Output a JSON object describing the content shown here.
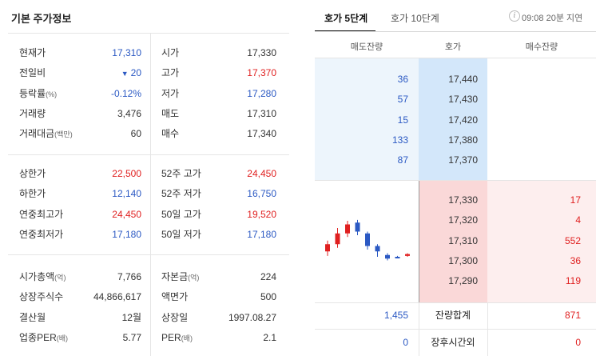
{
  "basic": {
    "title": "기본 주가정보",
    "rows1": [
      {
        "l1": "현재가",
        "u1": "",
        "v1": "17,310",
        "c1": "blue",
        "l2": "시가",
        "u2": "",
        "v2": "17,330",
        "c2": "dark"
      },
      {
        "l1": "전일비",
        "u1": "",
        "v1": "20",
        "c1": "blue",
        "arrow": "▼",
        "l2": "고가",
        "u2": "",
        "v2": "17,370",
        "c2": "red"
      },
      {
        "l1": "등락률",
        "u1": "(%)",
        "v1": "-0.12%",
        "c1": "blue",
        "l2": "저가",
        "u2": "",
        "v2": "17,280",
        "c2": "blue"
      },
      {
        "l1": "거래량",
        "u1": "",
        "v1": "3,476",
        "c1": "dark",
        "l2": "매도",
        "u2": "",
        "v2": "17,310",
        "c2": "dark"
      },
      {
        "l1": "거래대금",
        "u1": "(백만)",
        "v1": "60",
        "c1": "dark",
        "l2": "매수",
        "u2": "",
        "v2": "17,340",
        "c2": "dark"
      }
    ],
    "rows2": [
      {
        "l1": "상한가",
        "u1": "",
        "v1": "22,500",
        "c1": "red",
        "l2": "52주 고가",
        "u2": "",
        "v2": "24,450",
        "c2": "red"
      },
      {
        "l1": "하한가",
        "u1": "",
        "v1": "12,140",
        "c1": "blue",
        "l2": "52주 저가",
        "u2": "",
        "v2": "16,750",
        "c2": "blue"
      },
      {
        "l1": "연중최고가",
        "u1": "",
        "v1": "24,450",
        "c1": "red",
        "l2": "50일 고가",
        "u2": "",
        "v2": "19,520",
        "c2": "red"
      },
      {
        "l1": "연중최저가",
        "u1": "",
        "v1": "17,180",
        "c1": "blue",
        "l2": "50일 저가",
        "u2": "",
        "v2": "17,180",
        "c2": "blue"
      }
    ],
    "rows3": [
      {
        "l1": "시가총액",
        "u1": "(억)",
        "v1": "7,766",
        "c1": "dark",
        "l2": "자본금",
        "u2": "(억)",
        "v2": "224",
        "c2": "dark"
      },
      {
        "l1": "상장주식수",
        "u1": "",
        "v1": "44,866,617",
        "c1": "dark",
        "l2": "액면가",
        "u2": "",
        "v2": "500",
        "c2": "dark"
      },
      {
        "l1": "결산월",
        "u1": "",
        "v1": "12월",
        "c1": "dark",
        "l2": "상장일",
        "u2": "",
        "v2": "1997.08.27",
        "c2": "dark"
      },
      {
        "l1": "업종PER",
        "u1": "(배)",
        "v1": "5.77",
        "c1": "dark",
        "l2": "PER",
        "u2": "(배)",
        "v2": "2.1",
        "c2": "dark"
      }
    ]
  },
  "orderbook": {
    "tabs": [
      "호가 5단계",
      "호가 10단계"
    ],
    "timestamp": "09:08 20분 지연",
    "info_icon": "i",
    "headers": [
      "매도잔량",
      "호가",
      "매수잔량"
    ],
    "asks": [
      {
        "qty": "36",
        "price": "17,440"
      },
      {
        "qty": "57",
        "price": "17,430"
      },
      {
        "qty": "15",
        "price": "17,420"
      },
      {
        "qty": "133",
        "price": "17,380"
      },
      {
        "qty": "87",
        "price": "17,370"
      }
    ],
    "bids": [
      {
        "price": "17,330",
        "qty": "17"
      },
      {
        "price": "17,320",
        "qty": "4"
      },
      {
        "price": "17,310",
        "qty": "552"
      },
      {
        "price": "17,300",
        "qty": "36"
      },
      {
        "price": "17,290",
        "qty": "119"
      }
    ],
    "total": {
      "sell": "1,455",
      "label": "잔량합계",
      "buy": "871"
    },
    "after_hours": {
      "sell": "0",
      "label": "장후시간외",
      "buy": "0"
    },
    "colors": {
      "up": "#e02020",
      "down": "#2b59c3"
    }
  },
  "mini_chart": {
    "candles": [
      {
        "open": 17310,
        "close": 17318,
        "high": 17322,
        "low": 17305,
        "dir": "up"
      },
      {
        "open": 17318,
        "close": 17330,
        "high": 17336,
        "low": 17314,
        "dir": "up"
      },
      {
        "open": 17330,
        "close": 17340,
        "high": 17344,
        "low": 17326,
        "dir": "up"
      },
      {
        "open": 17342,
        "close": 17332,
        "high": 17345,
        "low": 17328,
        "dir": "down"
      },
      {
        "open": 17330,
        "close": 17316,
        "high": 17332,
        "low": 17312,
        "dir": "down"
      },
      {
        "open": 17316,
        "close": 17310,
        "high": 17318,
        "low": 17304,
        "dir": "down"
      },
      {
        "open": 17306,
        "close": 17302,
        "high": 17308,
        "low": 17300,
        "dir": "down"
      },
      {
        "open": 17304,
        "close": 17304,
        "high": 17305,
        "low": 17303,
        "dir": "down"
      },
      {
        "open": 17305,
        "close": 17307,
        "high": 17308,
        "low": 17304,
        "dir": "up"
      }
    ],
    "ylim": [
      17280,
      17360
    ]
  }
}
